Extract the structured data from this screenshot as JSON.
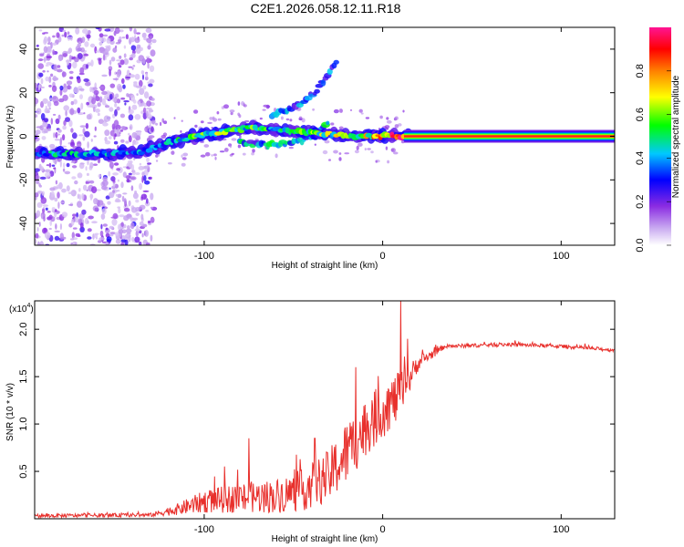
{
  "title": "C2E1.2026.058.12.11.R18",
  "colors": {
    "snr_line": "#e8302c",
    "spectrogram_ridge": "#ff2020",
    "axis": "#000000"
  },
  "chart_data": [
    {
      "type": "heatmap",
      "name": "spectrogram",
      "xlabel": "Height of straight line (km)",
      "ylabel": "Frequency (Hz)",
      "xlim": [
        -195,
        130
      ],
      "ylim": [
        -50,
        50
      ],
      "xticks": [
        -100,
        0,
        100
      ],
      "xtick_labels": [
        "-100",
        "0",
        "100"
      ],
      "yticks": [
        -40,
        -20,
        0,
        20,
        40
      ],
      "ytick_labels": [
        "-40",
        "-20",
        "0",
        "20",
        "40"
      ],
      "colorbar": {
        "label": "Normalized spectral amplitude",
        "range": [
          0,
          1
        ],
        "ticks": [
          0.0,
          0.2,
          0.4,
          0.6,
          0.8
        ],
        "tick_labels": [
          "0.0",
          "0.2",
          "0.4",
          "0.6",
          "0.8"
        ],
        "colormap": [
          "#ffffff",
          "#c8a8f0",
          "#8a2be2",
          "#0000ff",
          "#00c8ff",
          "#00ff00",
          "#ffff00",
          "#ff8000",
          "#ff0000",
          "#ff1493"
        ]
      },
      "ridge": [
        {
          "h": -195,
          "f": -8,
          "amp": 0.42
        },
        {
          "h": -175,
          "f": -8,
          "amp": 0.45
        },
        {
          "h": -155,
          "f": -8,
          "amp": 0.4
        },
        {
          "h": -135,
          "f": -7,
          "amp": 0.38
        },
        {
          "h": -120,
          "f": -3,
          "amp": 0.45
        },
        {
          "h": -105,
          "f": 0,
          "amp": 0.55
        },
        {
          "h": -90,
          "f": 2,
          "amp": 0.6
        },
        {
          "h": -75,
          "f": 4,
          "amp": 0.55
        },
        {
          "h": -60,
          "f": 3,
          "amp": 0.5
        },
        {
          "h": -45,
          "f": 2,
          "amp": 0.55
        },
        {
          "h": -30,
          "f": 1,
          "amp": 0.6
        },
        {
          "h": -15,
          "f": 0,
          "amp": 0.7
        },
        {
          "h": 0,
          "f": 0,
          "amp": 0.85
        },
        {
          "h": 15,
          "f": 0,
          "amp": 1.0
        },
        {
          "h": 130,
          "f": 0,
          "amp": 1.0
        }
      ],
      "secondary_branch": [
        {
          "h": -80,
          "f": -3
        },
        {
          "h": -60,
          "f": -4
        },
        {
          "h": -45,
          "f": -2
        },
        {
          "h": -35,
          "f": 2
        },
        {
          "h": -30,
          "f": 8
        }
      ],
      "rising_branch": [
        {
          "h": -62,
          "f": 10
        },
        {
          "h": -48,
          "f": 14
        },
        {
          "h": -38,
          "f": 20
        },
        {
          "h": -25,
          "f": 35
        }
      ]
    },
    {
      "type": "line",
      "name": "snr",
      "xlabel": "Height of straight line (km)",
      "ylabel": "SNR (10 * v/v)",
      "y_multiplier": "(x10",
      "y_multiplier_exp": "4",
      "y_multiplier_close": ")",
      "xlim": [
        -195,
        130
      ],
      "ylim": [
        0,
        2.3
      ],
      "xticks": [
        -100,
        0,
        100
      ],
      "xtick_labels": [
        "-100",
        "0",
        "100"
      ],
      "yticks": [
        0.5,
        1.0,
        1.5,
        2.0
      ],
      "ytick_labels": [
        "0.5",
        "1.0",
        "1.5",
        "2.0"
      ],
      "envelope": [
        {
          "h": -195,
          "base": 0.03,
          "noise": 0.02
        },
        {
          "h": -130,
          "base": 0.04,
          "noise": 0.02
        },
        {
          "h": -115,
          "base": 0.1,
          "noise": 0.06
        },
        {
          "h": -100,
          "base": 0.18,
          "noise": 0.12
        },
        {
          "h": -80,
          "base": 0.22,
          "noise": 0.16
        },
        {
          "h": -60,
          "base": 0.24,
          "noise": 0.18
        },
        {
          "h": -45,
          "base": 0.3,
          "noise": 0.22
        },
        {
          "h": -30,
          "base": 0.45,
          "noise": 0.28
        },
        {
          "h": -20,
          "base": 0.7,
          "noise": 0.35
        },
        {
          "h": -10,
          "base": 0.95,
          "noise": 0.3
        },
        {
          "h": 0,
          "base": 1.15,
          "noise": 0.3
        },
        {
          "h": 10,
          "base": 1.3,
          "noise": 0.25
        },
        {
          "h": 20,
          "base": 1.65,
          "noise": 0.08
        },
        {
          "h": 35,
          "base": 1.82,
          "noise": 0.02
        },
        {
          "h": 70,
          "base": 1.84,
          "noise": 0.02
        },
        {
          "h": 100,
          "base": 1.82,
          "noise": 0.02
        },
        {
          "h": 130,
          "base": 1.78,
          "noise": 0.02
        }
      ],
      "peaks": [
        {
          "h": -75,
          "value": 0.85
        },
        {
          "h": -38,
          "value": 0.85
        },
        {
          "h": -15,
          "value": 1.6
        },
        {
          "h": 10,
          "value": 2.3
        },
        {
          "h": 14,
          "value": 1.9
        }
      ]
    }
  ]
}
